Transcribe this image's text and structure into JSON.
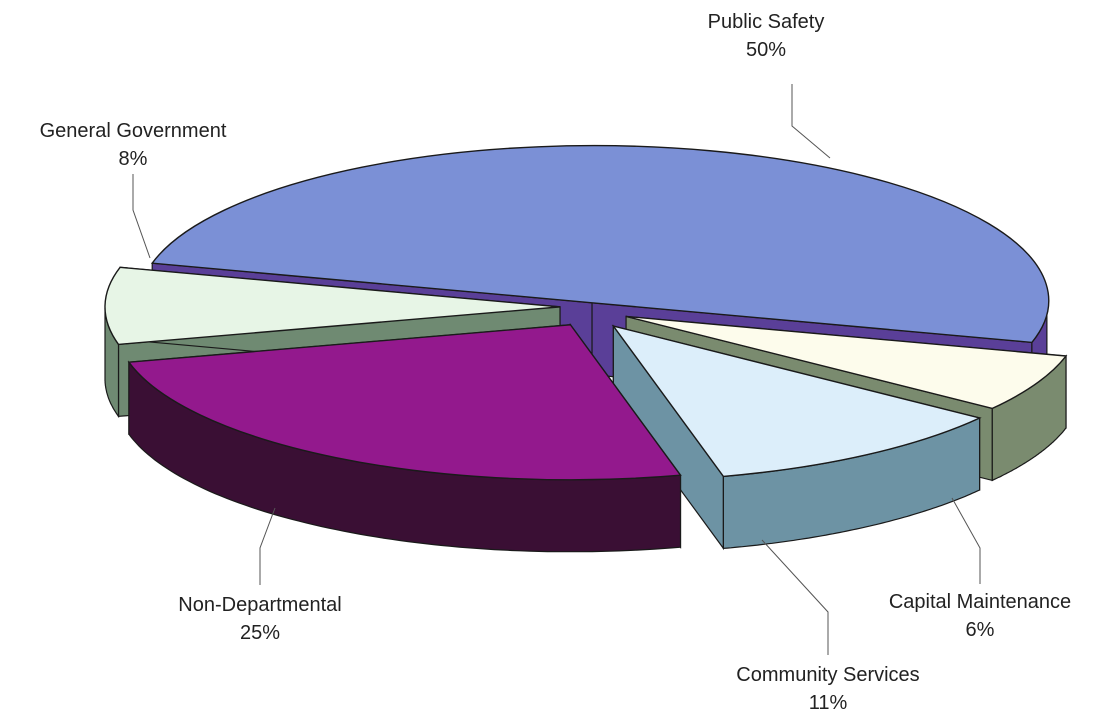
{
  "chart_data": {
    "type": "pie",
    "title": "",
    "unit": "%",
    "slices": [
      {
        "label": "Public Safety",
        "value": 50,
        "value_label": "50%",
        "top_color": "#7b90d6",
        "side_color": "#5a3f98"
      },
      {
        "label": "Capital Maintenance",
        "value": 6,
        "value_label": "6%",
        "top_color": "#fdfcec",
        "side_color": "#7a8b6f"
      },
      {
        "label": "Community Services",
        "value": 11,
        "value_label": "11%",
        "top_color": "#dceefa",
        "side_color": "#6d93a4"
      },
      {
        "label": "Non-Departmental",
        "value": 25,
        "value_label": "25%",
        "top_color": "#93198d",
        "side_color": "#3a0f34"
      },
      {
        "label": "General Government",
        "value": 8,
        "value_label": "8%",
        "top_color": "#e7f5e6",
        "side_color": "#6f8a72"
      }
    ],
    "outline_color": "#1a1a1a",
    "leader_color": "#555555"
  }
}
